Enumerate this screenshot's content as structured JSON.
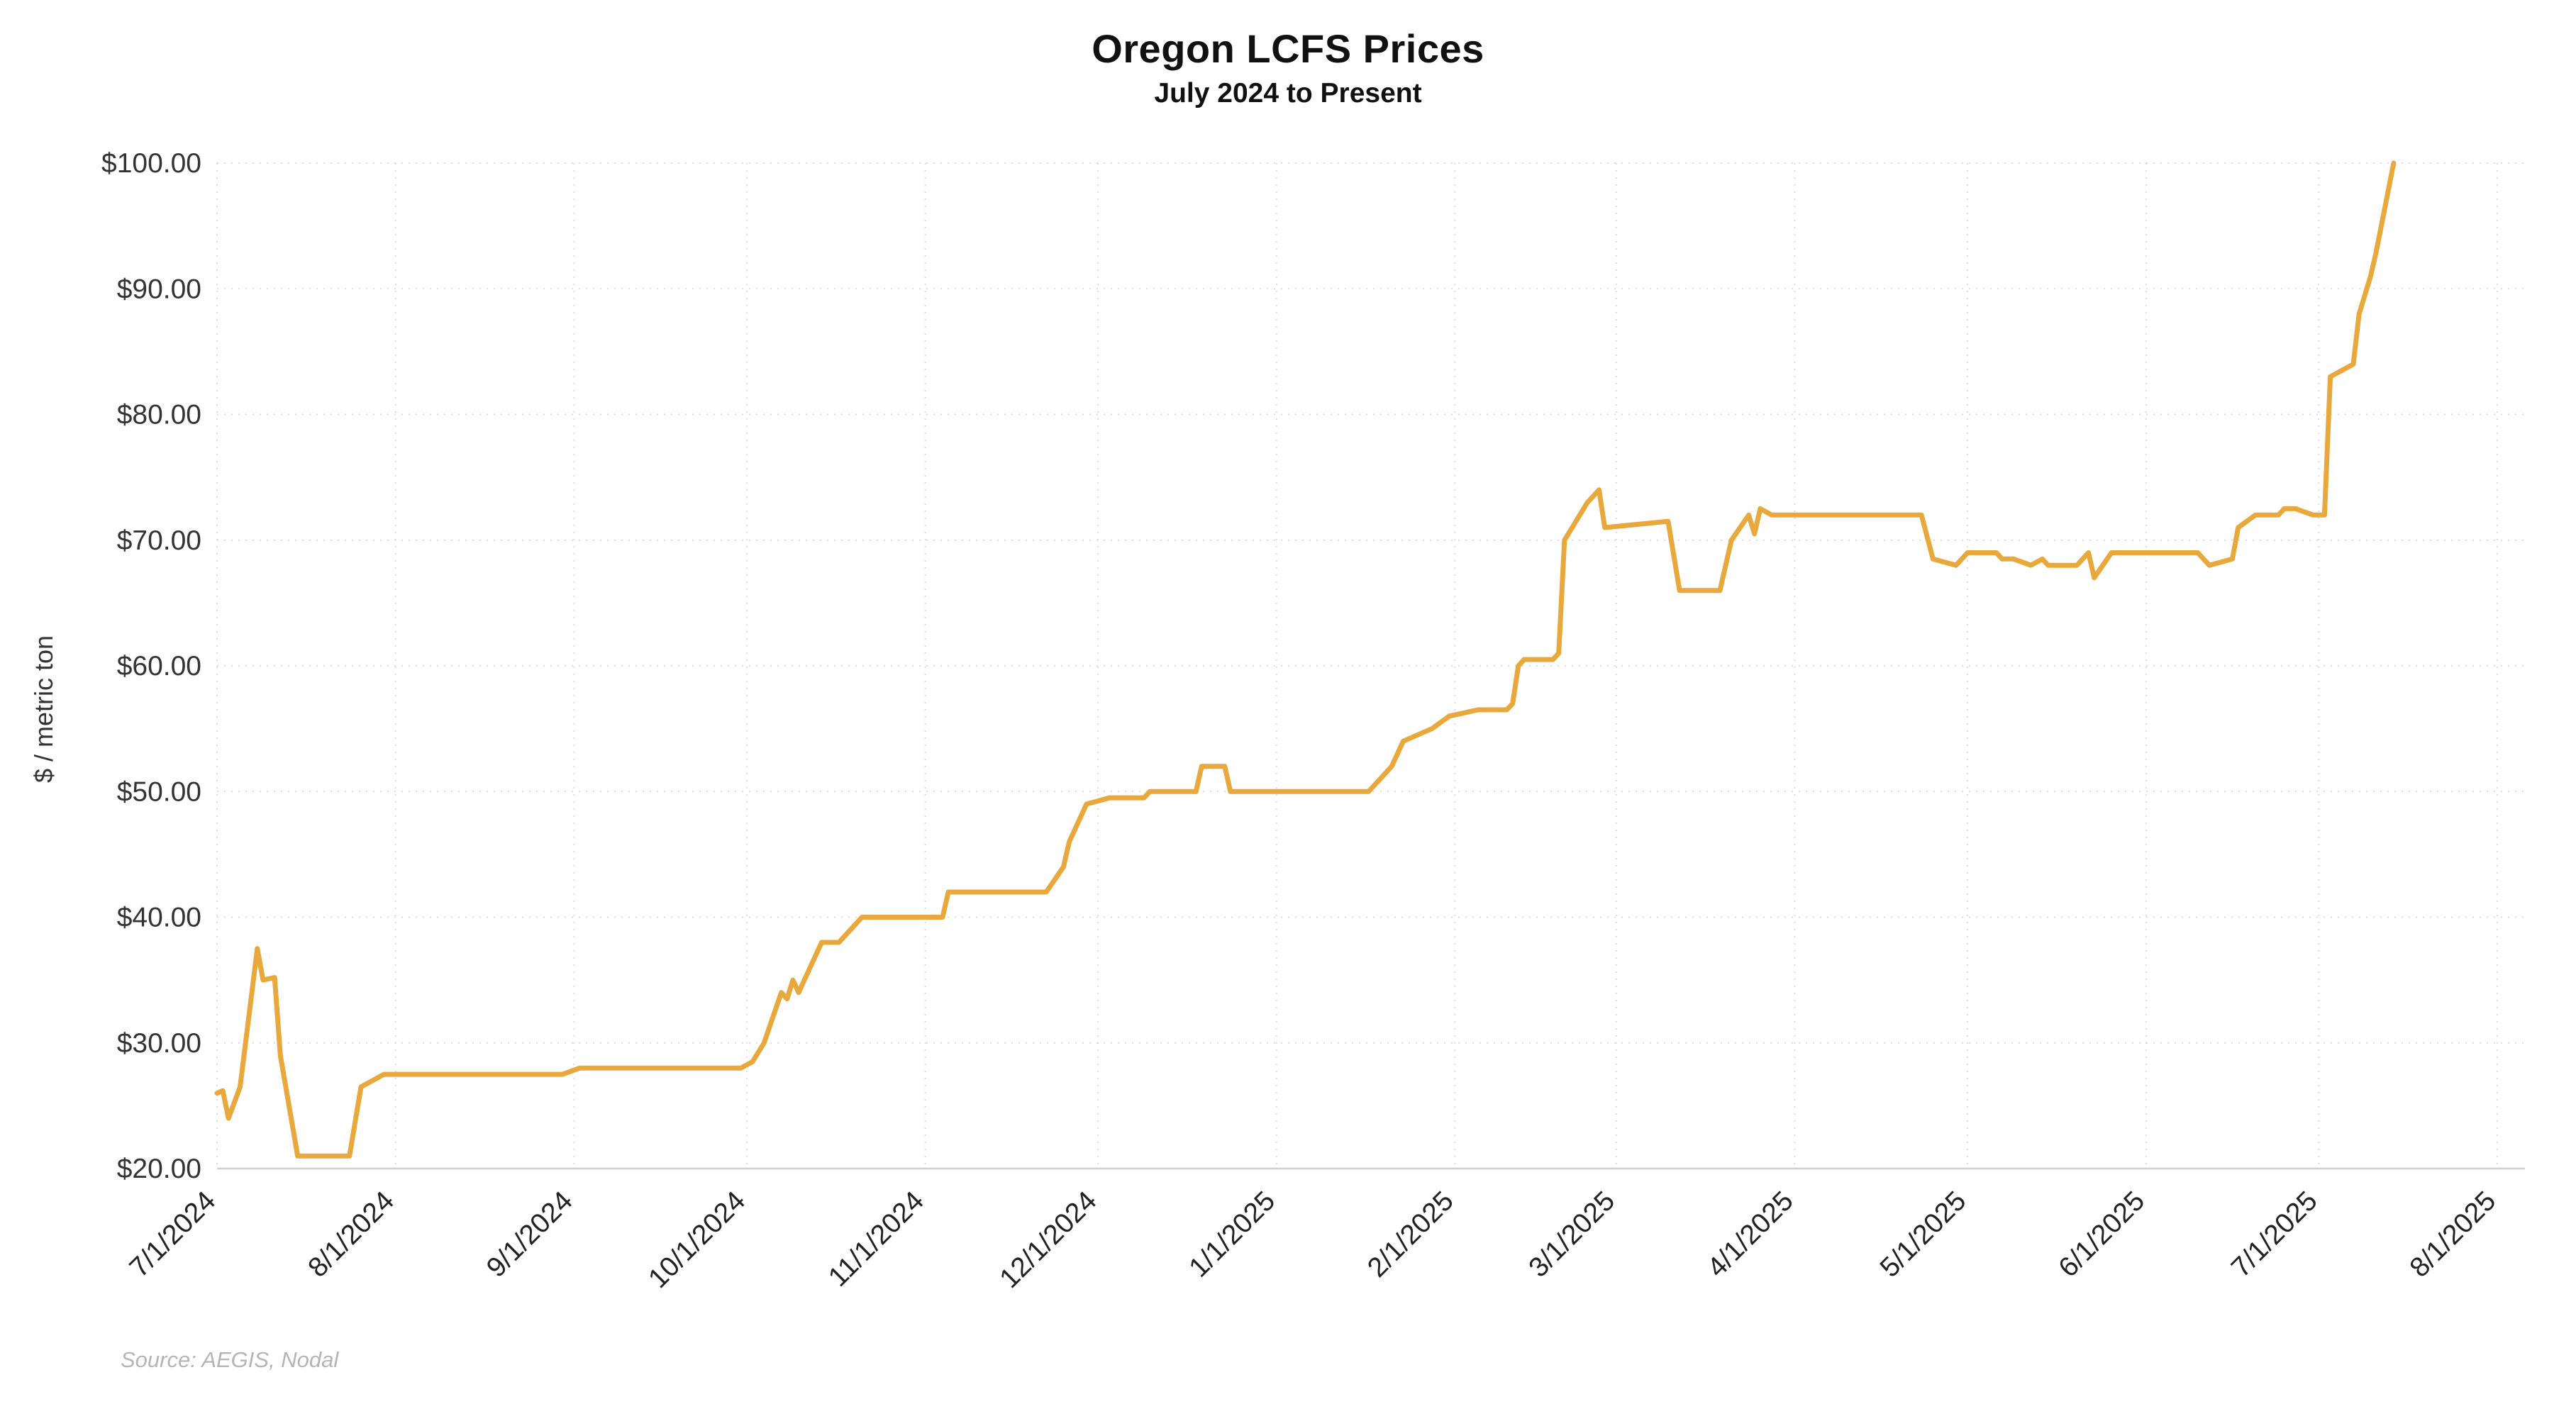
{
  "chart_data": {
    "type": "line",
    "title": "Oregon LCFS Prices",
    "subtitle": "July 2024 to Present",
    "ylabel": "$ / metric ton",
    "xlabel": "",
    "source": "Source: AEGIS, Nodal",
    "line_color": "#E8A83C",
    "grid": true,
    "legend": false,
    "ylim": [
      20,
      100
    ],
    "x_domain": [
      "2024-07-01",
      "2025-08-01"
    ],
    "y_ticks": [
      20,
      30,
      40,
      50,
      60,
      70,
      80,
      90,
      100
    ],
    "y_tick_labels": [
      "$20.00",
      "$30.00",
      "$40.00",
      "$50.00",
      "$60.00",
      "$70.00",
      "$80.00",
      "$90.00",
      "$100.00"
    ],
    "x_ticks": [
      "2024-07-01",
      "2024-08-01",
      "2024-09-01",
      "2024-10-01",
      "2024-11-01",
      "2024-12-01",
      "2025-01-01",
      "2025-02-01",
      "2025-03-01",
      "2025-04-01",
      "2025-05-01",
      "2025-06-01",
      "2025-07-01",
      "2025-08-01"
    ],
    "x_tick_labels": [
      "7/1/2024",
      "8/1/2024",
      "9/1/2024",
      "10/1/2024",
      "11/1/2024",
      "12/1/2024",
      "1/1/2025",
      "2/1/2025",
      "3/1/2025",
      "4/1/2025",
      "5/1/2025",
      "6/1/2025",
      "7/1/2025",
      "8/1/2025"
    ],
    "series": [
      {
        "name": "Oregon LCFS Price",
        "points": [
          [
            "2024-07-01",
            26.0
          ],
          [
            "2024-07-02",
            26.2
          ],
          [
            "2024-07-03",
            24.0
          ],
          [
            "2024-07-05",
            26.5
          ],
          [
            "2024-07-08",
            37.5
          ],
          [
            "2024-07-09",
            35.0
          ],
          [
            "2024-07-11",
            35.2
          ],
          [
            "2024-07-12",
            29.0
          ],
          [
            "2024-07-15",
            21.0
          ],
          [
            "2024-07-24",
            21.0
          ],
          [
            "2024-07-26",
            26.5
          ],
          [
            "2024-07-30",
            27.5
          ],
          [
            "2024-08-30",
            27.5
          ],
          [
            "2024-09-02",
            28.0
          ],
          [
            "2024-09-30",
            28.0
          ],
          [
            "2024-10-02",
            28.5
          ],
          [
            "2024-10-04",
            30.0
          ],
          [
            "2024-10-07",
            34.0
          ],
          [
            "2024-10-08",
            33.5
          ],
          [
            "2024-10-09",
            35.0
          ],
          [
            "2024-10-10",
            34.0
          ],
          [
            "2024-10-11",
            35.0
          ],
          [
            "2024-10-14",
            38.0
          ],
          [
            "2024-10-17",
            38.0
          ],
          [
            "2024-10-21",
            40.0
          ],
          [
            "2024-11-04",
            40.0
          ],
          [
            "2024-11-05",
            42.0
          ],
          [
            "2024-11-22",
            42.0
          ],
          [
            "2024-11-25",
            44.0
          ],
          [
            "2024-11-26",
            46.0
          ],
          [
            "2024-11-29",
            49.0
          ],
          [
            "2024-12-03",
            49.5
          ],
          [
            "2024-12-09",
            49.5
          ],
          [
            "2024-12-10",
            50.0
          ],
          [
            "2024-12-18",
            50.0
          ],
          [
            "2024-12-19",
            52.0
          ],
          [
            "2024-12-23",
            52.0
          ],
          [
            "2024-12-24",
            50.0
          ],
          [
            "2025-01-17",
            50.0
          ],
          [
            "2025-01-21",
            52.0
          ],
          [
            "2025-01-23",
            54.0
          ],
          [
            "2025-01-28",
            55.0
          ],
          [
            "2025-01-31",
            56.0
          ],
          [
            "2025-02-05",
            56.5
          ],
          [
            "2025-02-10",
            56.5
          ],
          [
            "2025-02-11",
            57.0
          ],
          [
            "2025-02-12",
            60.0
          ],
          [
            "2025-02-13",
            60.5
          ],
          [
            "2025-02-18",
            60.5
          ],
          [
            "2025-02-19",
            61.0
          ],
          [
            "2025-02-20",
            70.0
          ],
          [
            "2025-02-24",
            73.0
          ],
          [
            "2025-02-25",
            73.5
          ],
          [
            "2025-02-26",
            74.0
          ],
          [
            "2025-02-27",
            71.0
          ],
          [
            "2025-03-10",
            71.5
          ],
          [
            "2025-03-12",
            66.0
          ],
          [
            "2025-03-19",
            66.0
          ],
          [
            "2025-03-21",
            70.0
          ],
          [
            "2025-03-24",
            72.0
          ],
          [
            "2025-03-25",
            70.5
          ],
          [
            "2025-03-26",
            72.5
          ],
          [
            "2025-03-28",
            72.0
          ],
          [
            "2025-04-23",
            72.0
          ],
          [
            "2025-04-25",
            68.5
          ],
          [
            "2025-04-29",
            68.0
          ],
          [
            "2025-05-01",
            69.0
          ],
          [
            "2025-05-06",
            69.0
          ],
          [
            "2025-05-07",
            68.5
          ],
          [
            "2025-05-09",
            68.5
          ],
          [
            "2025-05-12",
            68.0
          ],
          [
            "2025-05-14",
            68.5
          ],
          [
            "2025-05-15",
            68.0
          ],
          [
            "2025-05-20",
            68.0
          ],
          [
            "2025-05-22",
            69.0
          ],
          [
            "2025-05-23",
            67.0
          ],
          [
            "2025-05-26",
            69.0
          ],
          [
            "2025-06-10",
            69.0
          ],
          [
            "2025-06-12",
            68.0
          ],
          [
            "2025-06-16",
            68.5
          ],
          [
            "2025-06-17",
            71.0
          ],
          [
            "2025-06-20",
            72.0
          ],
          [
            "2025-06-24",
            72.0
          ],
          [
            "2025-06-25",
            72.5
          ],
          [
            "2025-06-27",
            72.5
          ],
          [
            "2025-06-30",
            72.0
          ],
          [
            "2025-07-02",
            72.0
          ],
          [
            "2025-07-03",
            83.0
          ],
          [
            "2025-07-07",
            84.0
          ],
          [
            "2025-07-08",
            88.0
          ],
          [
            "2025-07-10",
            91.0
          ],
          [
            "2025-07-11",
            93.0
          ],
          [
            "2025-07-14",
            100.0
          ]
        ]
      }
    ]
  }
}
